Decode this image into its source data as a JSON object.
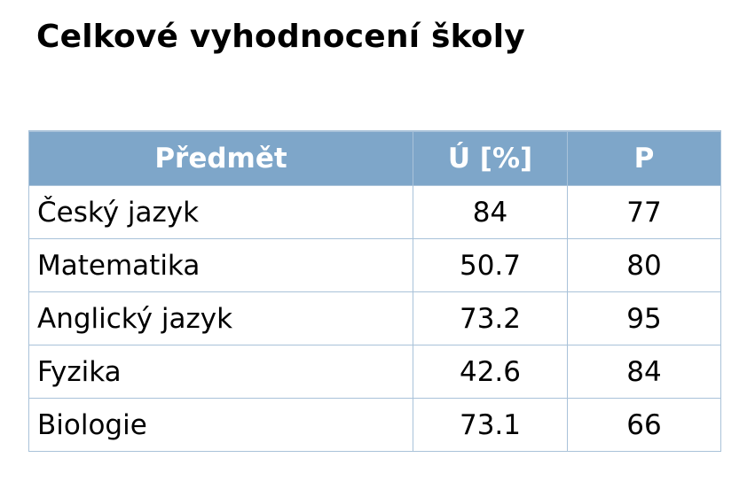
{
  "title": "Celkové vyhodnocení školy",
  "table": {
    "headers": [
      "Předmět",
      "Ú [%]",
      "P"
    ],
    "rows": [
      [
        "Český jazyk",
        "84",
        "77"
      ],
      [
        "Matematika",
        "50.7",
        "80"
      ],
      [
        "Anglický jazyk",
        "73.2",
        "95"
      ],
      [
        "Fyzika",
        "42.6",
        "84"
      ],
      [
        "Biologie",
        "73.1",
        "66"
      ]
    ]
  },
  "colors": {
    "header_background": "#7ea6c9",
    "header_text": "#ffffff",
    "border": "#a9c2d9"
  }
}
